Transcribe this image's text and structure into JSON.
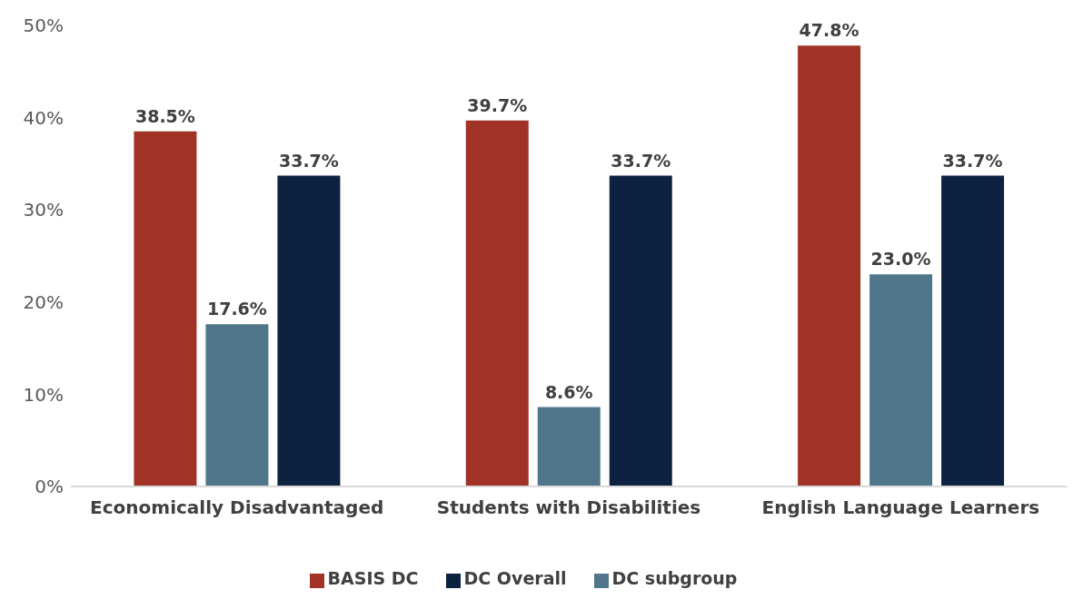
{
  "chart_data": {
    "type": "bar",
    "categories": [
      "Economically Disadvantaged",
      "Students with Disabilities",
      "English Language Learners"
    ],
    "series": [
      {
        "name": "BASIS DC",
        "color": "#a03226",
        "values": [
          38.5,
          39.7,
          47.8
        ],
        "value_labels": [
          "38.5%",
          "39.7%",
          "47.8%"
        ]
      },
      {
        "name": "DC subgroup",
        "color": "#50768c",
        "values": [
          17.6,
          8.6,
          23.0
        ],
        "value_labels": [
          "17.6%",
          "8.6%",
          "23.0%"
        ]
      },
      {
        "name": "DC Overall",
        "color": "#0c2240",
        "values": [
          33.7,
          33.7,
          33.7
        ],
        "value_labels": [
          "33.7%",
          "33.7%",
          "33.7%"
        ]
      }
    ],
    "ylim": [
      0,
      50
    ],
    "yticks": [
      {
        "value": 0,
        "label": "0%"
      },
      {
        "value": 10,
        "label": "10%"
      },
      {
        "value": 20,
        "label": "20%"
      },
      {
        "value": 30,
        "label": "30%"
      },
      {
        "value": 40,
        "label": "40%"
      },
      {
        "value": 50,
        "label": "50%"
      }
    ],
    "grid": false,
    "legend": "bottom"
  }
}
